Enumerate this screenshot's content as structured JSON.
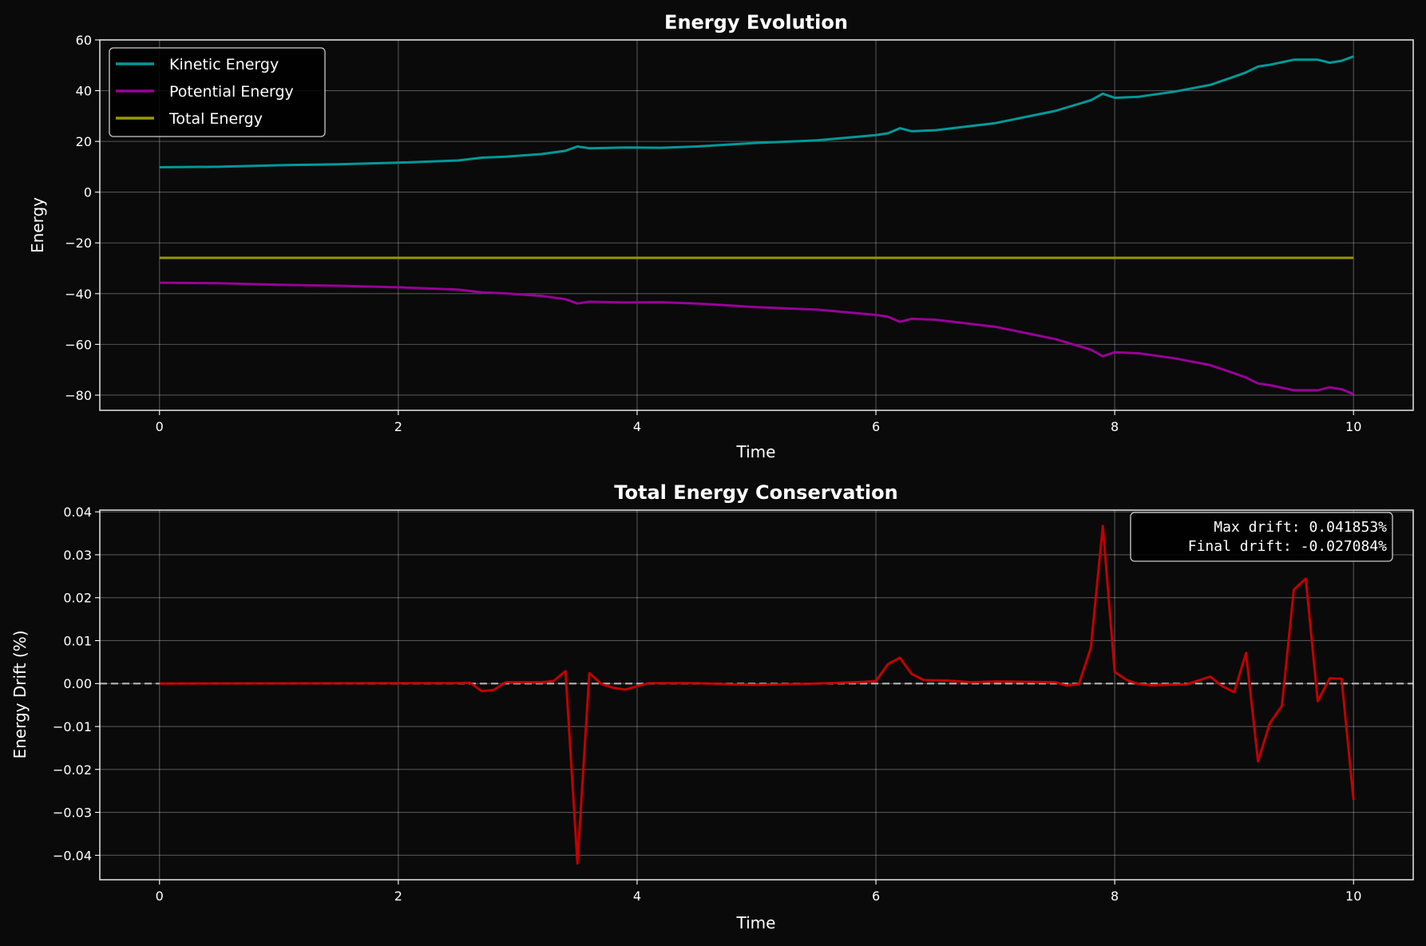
{
  "chart_data": [
    {
      "type": "line",
      "title": "Energy Evolution",
      "xlabel": "Time",
      "ylabel": "Energy",
      "xlim": [
        -0.5,
        10.5
      ],
      "ylim": [
        -86,
        60
      ],
      "xticks": [
        0,
        2,
        4,
        6,
        8,
        10
      ],
      "yticks": [
        -80,
        -60,
        -40,
        -20,
        0,
        20,
        40,
        60
      ],
      "xtick_labels": [
        "0",
        "2",
        "4",
        "6",
        "8",
        "10"
      ],
      "ytick_labels": [
        "−80",
        "−60",
        "−40",
        "−20",
        "0",
        "20",
        "40",
        "60"
      ],
      "grid": true,
      "legend_position": "top-left",
      "series": [
        {
          "name": "Kinetic Energy",
          "color": "#009999",
          "x": [
            0,
            0.5,
            1.0,
            1.5,
            2.0,
            2.5,
            2.7,
            2.9,
            3.2,
            3.4,
            3.5,
            3.6,
            3.9,
            4.2,
            4.5,
            5.0,
            5.5,
            6.0,
            6.1,
            6.2,
            6.3,
            6.5,
            7.0,
            7.5,
            7.8,
            7.9,
            8.0,
            8.2,
            8.5,
            8.8,
            9.0,
            9.1,
            9.2,
            9.3,
            9.5,
            9.7,
            9.8,
            9.9,
            10.0
          ],
          "y": [
            9.8,
            10.0,
            10.6,
            11.0,
            11.6,
            12.5,
            13.6,
            14.0,
            15.0,
            16.3,
            18.0,
            17.3,
            17.6,
            17.5,
            18.0,
            19.4,
            20.4,
            22.5,
            23.2,
            25.2,
            24.0,
            24.4,
            27.2,
            32.0,
            36.2,
            38.8,
            37.2,
            37.6,
            39.6,
            42.3,
            45.5,
            47.2,
            49.5,
            50.2,
            52.2,
            52.2,
            51.0,
            51.8,
            53.5
          ]
        },
        {
          "name": "Potential Energy",
          "color": "#990099",
          "x": [
            0,
            0.5,
            1.0,
            1.5,
            2.0,
            2.5,
            2.7,
            2.9,
            3.2,
            3.4,
            3.5,
            3.6,
            3.9,
            4.2,
            4.5,
            5.0,
            5.5,
            6.0,
            6.1,
            6.2,
            6.3,
            6.5,
            7.0,
            7.5,
            7.8,
            7.9,
            8.0,
            8.2,
            8.5,
            8.8,
            9.0,
            9.1,
            9.2,
            9.3,
            9.5,
            9.7,
            9.8,
            9.9,
            10.0
          ],
          "y": [
            -35.7,
            -35.9,
            -36.5,
            -36.9,
            -37.5,
            -38.4,
            -39.5,
            -39.9,
            -40.9,
            -42.2,
            -43.9,
            -43.2,
            -43.5,
            -43.4,
            -43.9,
            -45.3,
            -46.3,
            -48.4,
            -49.1,
            -51.1,
            -49.9,
            -50.3,
            -53.1,
            -57.9,
            -62.1,
            -64.7,
            -63.1,
            -63.5,
            -65.5,
            -68.2,
            -71.4,
            -73.1,
            -75.4,
            -76.1,
            -78.1,
            -78.1,
            -76.9,
            -77.7,
            -79.6
          ]
        },
        {
          "name": "Total Energy",
          "color": "#999900",
          "x": [
            0,
            10
          ],
          "y": [
            -25.9,
            -25.9
          ]
        }
      ]
    },
    {
      "type": "line",
      "title": "Total Energy Conservation",
      "xlabel": "Time",
      "ylabel": "Energy Drift (%)",
      "xlim": [
        -0.5,
        10.5
      ],
      "ylim": [
        -0.0457,
        0.0404
      ],
      "xticks": [
        0,
        2,
        4,
        6,
        8,
        10
      ],
      "yticks": [
        -0.04,
        -0.03,
        -0.02,
        -0.01,
        0.0,
        0.01,
        0.02,
        0.03,
        0.04
      ],
      "xtick_labels": [
        "0",
        "2",
        "4",
        "6",
        "8",
        "10"
      ],
      "ytick_labels": [
        "−0.04",
        "−0.03",
        "−0.02",
        "−0.01",
        "0.00",
        "0.01",
        "0.02",
        "0.03",
        "0.04"
      ],
      "grid": true,
      "reference_line": {
        "y": 0.0,
        "style": "dashed",
        "color": "#cccccc"
      },
      "annotation": {
        "lines": [
          "Max drift: 0.041853%",
          "Final drift: -0.027084%"
        ],
        "position": "top-right"
      },
      "series": [
        {
          "color": "#cc0000",
          "x": [
            0,
            2.5,
            2.6,
            2.7,
            2.8,
            2.9,
            3.2,
            3.3,
            3.4,
            3.5,
            3.6,
            3.7,
            3.8,
            3.9,
            4.0,
            4.1,
            4.5,
            4.8,
            5.0,
            5.5,
            5.9,
            6.0,
            6.1,
            6.2,
            6.3,
            6.4,
            6.6,
            6.8,
            7.0,
            7.5,
            7.6,
            7.7,
            7.8,
            7.9,
            8.0,
            8.1,
            8.2,
            8.3,
            8.6,
            8.8,
            8.9,
            9.0,
            9.1,
            9.2,
            9.3,
            9.4,
            9.5,
            9.6,
            9.7,
            9.8,
            9.9,
            10.0
          ],
          "y": [
            0,
            0.0001,
            0.0002,
            -0.0018,
            -0.0015,
            0.0003,
            0.0003,
            0.0006,
            0.0029,
            -0.0419,
            0.0024,
            -0.0001,
            -0.001,
            -0.0014,
            -0.0006,
            0.0001,
            0.0001,
            -0.0002,
            -0.0003,
            0.0,
            0.0004,
            0.0006,
            0.0045,
            0.006,
            0.0022,
            0.0008,
            0.0007,
            0.0003,
            0.0005,
            0.0003,
            -0.0005,
            -0.0001,
            0.0083,
            0.0367,
            0.0027,
            0.0008,
            -0.0001,
            -0.0004,
            -0.0002,
            0.0016,
            -0.0006,
            -0.002,
            0.0071,
            -0.0181,
            -0.0092,
            -0.0052,
            0.0219,
            0.0244,
            -0.0041,
            0.0012,
            0.0011,
            -0.0271
          ]
        }
      ]
    }
  ]
}
